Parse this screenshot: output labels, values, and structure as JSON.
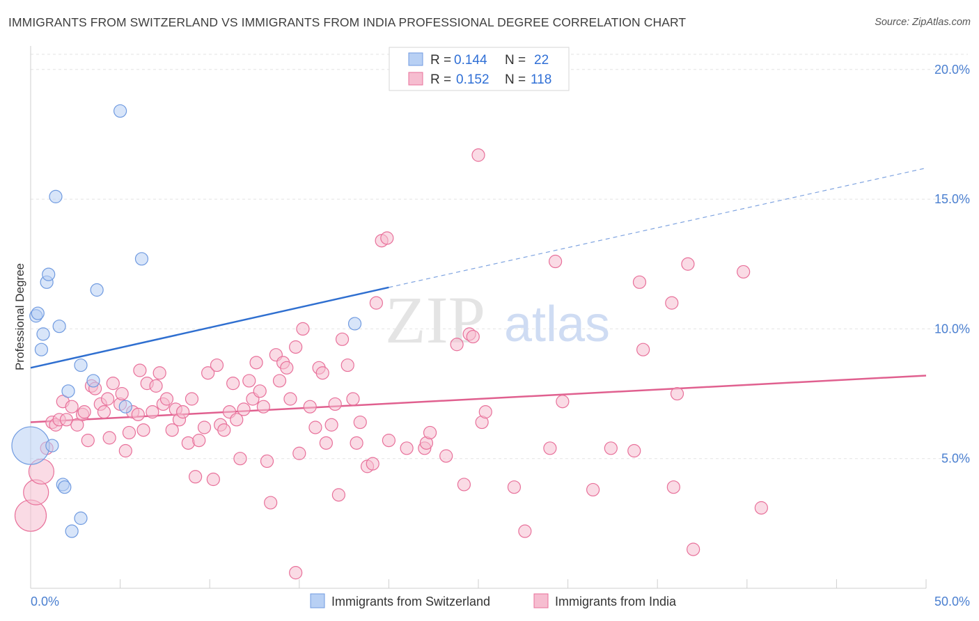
{
  "title": "IMMIGRANTS FROM SWITZERLAND VS IMMIGRANTS FROM INDIA PROFESSIONAL DEGREE CORRELATION CHART",
  "source": "Source: ZipAtlas.com",
  "watermark": {
    "zip": "ZIP",
    "atlas": "atlas"
  },
  "chart_data": {
    "type": "scatter",
    "xlabel": "",
    "ylabel": "Professional Degree",
    "xlim": [
      0,
      50
    ],
    "ylim": [
      0,
      20.8
    ],
    "x_tick_labels": [
      "0.0%",
      "50.0%"
    ],
    "y_ticks": [
      5,
      10,
      15,
      20
    ],
    "y_tick_labels": [
      "5.0%",
      "10.0%",
      "15.0%",
      "20.0%"
    ],
    "grid": true,
    "legend": {
      "placement": "top-center",
      "rows": [
        {
          "r_label": "R =",
          "r": "0.144",
          "n_label": "N =",
          "n": "22"
        },
        {
          "r_label": "R =",
          "r": "0.152",
          "n_label": "N =",
          "n": "118"
        }
      ]
    },
    "series": [
      {
        "name": "Immigrants from Switzerland",
        "color": "#6f9ae0",
        "fill": "#b8d0f4",
        "trend": {
          "x0": 0,
          "y0": 8.5,
          "x1": 20,
          "y1": 11.6,
          "dashed_to_x": 50,
          "dashed_to_y": 16.2
        },
        "points": [
          [
            0.0,
            5.5,
            3
          ],
          [
            0.3,
            10.5,
            1
          ],
          [
            0.4,
            10.6,
            1
          ],
          [
            0.6,
            9.2,
            1
          ],
          [
            0.7,
            9.8,
            1
          ],
          [
            0.9,
            11.8,
            1
          ],
          [
            1.0,
            12.1,
            1
          ],
          [
            1.2,
            5.5,
            1
          ],
          [
            1.4,
            15.1,
            1
          ],
          [
            1.6,
            10.1,
            1
          ],
          [
            1.8,
            4.0,
            1
          ],
          [
            1.9,
            3.9,
            1
          ],
          [
            2.1,
            7.6,
            1
          ],
          [
            2.3,
            2.2,
            1
          ],
          [
            2.8,
            8.6,
            1
          ],
          [
            2.8,
            2.7,
            1
          ],
          [
            3.5,
            8.0,
            1
          ],
          [
            3.7,
            11.5,
            1
          ],
          [
            5.0,
            18.4,
            1
          ],
          [
            5.3,
            7.0,
            1
          ],
          [
            6.2,
            12.7,
            1
          ],
          [
            18.1,
            10.2,
            1
          ]
        ]
      },
      {
        "name": "Immigrants from India",
        "color": "#e8709a",
        "fill": "#f6bdd0",
        "trend": {
          "x0": 0,
          "y0": 6.4,
          "x1": 50,
          "y1": 8.2
        },
        "points": [
          [
            0.0,
            2.8,
            2.5
          ],
          [
            0.3,
            3.7,
            2
          ],
          [
            0.6,
            4.5,
            2
          ],
          [
            0.9,
            5.4,
            1
          ],
          [
            1.2,
            6.4,
            1
          ],
          [
            1.4,
            6.3,
            1
          ],
          [
            1.6,
            6.5,
            1
          ],
          [
            1.8,
            7.2,
            1
          ],
          [
            2.0,
            6.5,
            1
          ],
          [
            2.3,
            7.0,
            1
          ],
          [
            2.6,
            6.3,
            1
          ],
          [
            2.9,
            6.7,
            1
          ],
          [
            3.0,
            6.8,
            1
          ],
          [
            3.2,
            5.7,
            1
          ],
          [
            3.4,
            7.8,
            1
          ],
          [
            3.6,
            7.7,
            1
          ],
          [
            3.9,
            7.1,
            1
          ],
          [
            4.1,
            6.8,
            1
          ],
          [
            4.3,
            7.3,
            1
          ],
          [
            4.4,
            5.8,
            1
          ],
          [
            4.6,
            7.9,
            1
          ],
          [
            5.0,
            7.1,
            1
          ],
          [
            5.1,
            7.5,
            1
          ],
          [
            5.3,
            5.3,
            1
          ],
          [
            5.5,
            6.0,
            1
          ],
          [
            5.7,
            6.8,
            1
          ],
          [
            6.0,
            6.7,
            1
          ],
          [
            6.1,
            8.4,
            1
          ],
          [
            6.3,
            6.1,
            1
          ],
          [
            6.5,
            7.9,
            1
          ],
          [
            6.8,
            6.8,
            1
          ],
          [
            7.0,
            7.8,
            1
          ],
          [
            7.2,
            8.3,
            1
          ],
          [
            7.4,
            7.1,
            1
          ],
          [
            7.6,
            7.3,
            1
          ],
          [
            7.9,
            6.1,
            1
          ],
          [
            8.1,
            6.9,
            1
          ],
          [
            8.3,
            6.5,
            1
          ],
          [
            8.5,
            6.8,
            1
          ],
          [
            8.8,
            5.6,
            1
          ],
          [
            9.0,
            7.3,
            1
          ],
          [
            9.2,
            4.3,
            1
          ],
          [
            9.4,
            5.7,
            1
          ],
          [
            9.7,
            6.2,
            1
          ],
          [
            9.9,
            8.3,
            1
          ],
          [
            10.2,
            4.2,
            1
          ],
          [
            10.4,
            8.6,
            1
          ],
          [
            10.6,
            6.3,
            1
          ],
          [
            10.8,
            6.1,
            1
          ],
          [
            11.1,
            6.8,
            1
          ],
          [
            11.3,
            7.9,
            1
          ],
          [
            11.5,
            6.5,
            1
          ],
          [
            11.7,
            5.0,
            1
          ],
          [
            11.9,
            6.9,
            1
          ],
          [
            12.2,
            8.0,
            1
          ],
          [
            12.4,
            7.3,
            1
          ],
          [
            12.6,
            8.7,
            1
          ],
          [
            12.8,
            7.6,
            1
          ],
          [
            13.0,
            7.0,
            1
          ],
          [
            13.2,
            4.9,
            1
          ],
          [
            13.4,
            3.3,
            1
          ],
          [
            13.7,
            9.0,
            1
          ],
          [
            13.9,
            8.0,
            1
          ],
          [
            14.1,
            8.7,
            1
          ],
          [
            14.3,
            8.5,
            1
          ],
          [
            14.5,
            7.3,
            1
          ],
          [
            14.8,
            9.3,
            1
          ],
          [
            15.0,
            5.2,
            1
          ],
          [
            15.2,
            10.0,
            1
          ],
          [
            15.6,
            7.0,
            1
          ],
          [
            15.9,
            6.2,
            1
          ],
          [
            16.1,
            8.5,
            1
          ],
          [
            16.3,
            8.3,
            1
          ],
          [
            16.5,
            5.6,
            1
          ],
          [
            16.8,
            6.3,
            1
          ],
          [
            17.0,
            7.1,
            1
          ],
          [
            17.2,
            3.6,
            1
          ],
          [
            17.4,
            9.6,
            1
          ],
          [
            17.7,
            8.6,
            1
          ],
          [
            18.0,
            7.3,
            1
          ],
          [
            18.2,
            5.6,
            1
          ],
          [
            18.4,
            6.4,
            1
          ],
          [
            18.8,
            4.7,
            1
          ],
          [
            19.1,
            4.8,
            1
          ],
          [
            19.3,
            11.0,
            1
          ],
          [
            19.6,
            13.4,
            1
          ],
          [
            19.9,
            13.5,
            1
          ],
          [
            20.0,
            5.7,
            1
          ],
          [
            21.0,
            5.4,
            1
          ],
          [
            22.0,
            5.4,
            1
          ],
          [
            22.1,
            5.6,
            1
          ],
          [
            22.3,
            6.0,
            1
          ],
          [
            23.2,
            5.1,
            1
          ],
          [
            23.8,
            9.4,
            1
          ],
          [
            24.2,
            4.0,
            1
          ],
          [
            24.5,
            9.8,
            1
          ],
          [
            24.7,
            9.7,
            1
          ],
          [
            25.0,
            16.7,
            1
          ],
          [
            25.2,
            6.4,
            1
          ],
          [
            25.4,
            6.8,
            1
          ],
          [
            27.0,
            3.9,
            1
          ],
          [
            27.6,
            2.2,
            1
          ],
          [
            29.0,
            5.4,
            1
          ],
          [
            29.3,
            12.6,
            1
          ],
          [
            29.7,
            7.2,
            1
          ],
          [
            31.4,
            3.8,
            1
          ],
          [
            32.4,
            5.4,
            1
          ],
          [
            33.7,
            5.3,
            1
          ],
          [
            34.0,
            11.8,
            1
          ],
          [
            34.2,
            9.2,
            1
          ],
          [
            35.8,
            11.0,
            1
          ],
          [
            35.9,
            3.9,
            1
          ],
          [
            36.1,
            7.5,
            1
          ],
          [
            36.7,
            12.5,
            1
          ],
          [
            37.0,
            1.5,
            1
          ],
          [
            39.8,
            12.2,
            1
          ],
          [
            40.8,
            3.1,
            1
          ],
          [
            14.8,
            0.6,
            1
          ]
        ]
      }
    ]
  },
  "bottom_legend": [
    {
      "label": "Immigrants from Switzerland",
      "color": "#b8d0f4",
      "stroke": "#6f9ae0"
    },
    {
      "label": "Immigrants from India",
      "color": "#f6bdd0",
      "stroke": "#e8709a"
    }
  ]
}
